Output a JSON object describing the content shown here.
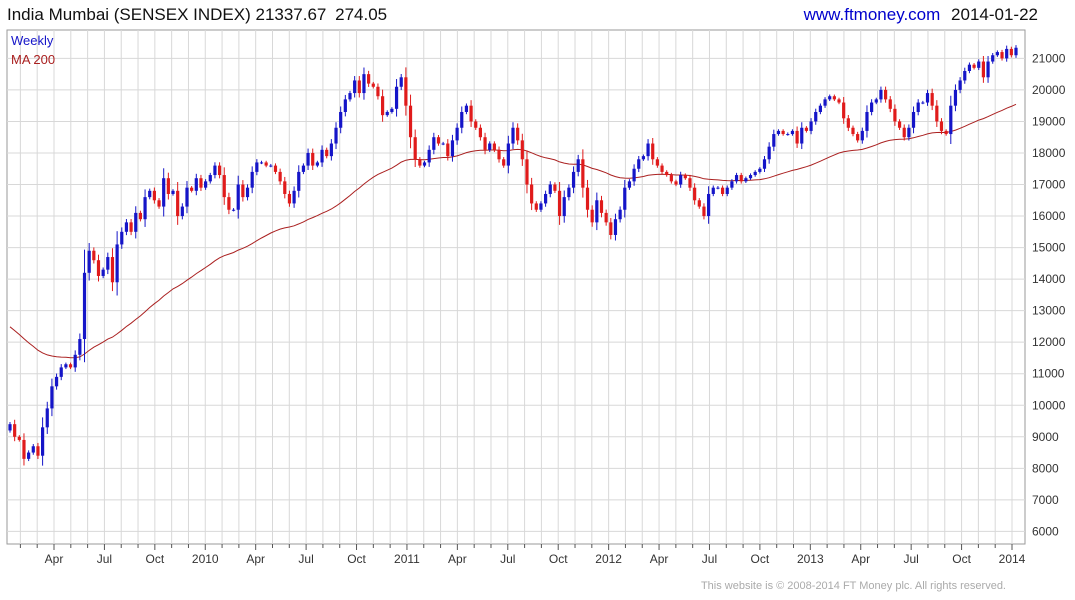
{
  "header": {
    "instrument": "India Mumbai (SENSEX INDEX)",
    "last": "21337.67",
    "change": "274.05",
    "site_url": "www.ftmoney.com",
    "date": "2014-01-22"
  },
  "footer": {
    "copyright": "This website is © 2008-2014 FT Money plc. All rights reserved."
  },
  "colors": {
    "up": "#1515c8",
    "down": "#e01b1b",
    "ma": "#aa2020",
    "grid": "#d8d8d8",
    "axis": "#333333",
    "url": "#0000cc"
  },
  "chart_data": {
    "type": "candlestick",
    "frequency": "Weekly",
    "legend": [
      {
        "label": "Weekly",
        "color": "#1515c8"
      },
      {
        "label": "MA 200",
        "color": "#aa2020"
      }
    ],
    "x_tick_labels": [
      "Apr",
      "Jul",
      "Oct",
      "2010",
      "Apr",
      "Jul",
      "Oct",
      "2011",
      "Apr",
      "Jul",
      "Oct",
      "2012",
      "Apr",
      "Jul",
      "Oct",
      "2013",
      "Apr",
      "Jul",
      "Oct",
      "2014"
    ],
    "y_ticks": [
      6000,
      7000,
      8000,
      9000,
      10000,
      11000,
      12000,
      13000,
      14000,
      15000,
      16000,
      17000,
      18000,
      19000,
      20000,
      21000
    ],
    "ylim": [
      5600,
      21900
    ],
    "grid": true,
    "close_series": [
      9400,
      9000,
      8900,
      8300,
      8500,
      8700,
      8400,
      9300,
      9900,
      10600,
      10900,
      11200,
      11300,
      11200,
      11600,
      12100,
      14200,
      14900,
      14600,
      14100,
      14300,
      14700,
      13900,
      15100,
      15500,
      15800,
      15500,
      16100,
      15900,
      16600,
      16800,
      16500,
      16300,
      17200,
      16700,
      16800,
      16000,
      16300,
      16900,
      16800,
      17200,
      16900,
      17100,
      17300,
      17600,
      17300,
      16600,
      16200,
      16200,
      17000,
      16600,
      16900,
      17400,
      17700,
      17700,
      17600,
      17600,
      17400,
      17100,
      16700,
      16400,
      16800,
      17400,
      17600,
      18000,
      17600,
      17700,
      18100,
      17900,
      18300,
      18800,
      19300,
      19700,
      19900,
      20300,
      19900,
      20500,
      20200,
      20100,
      19800,
      19200,
      19300,
      19400,
      20100,
      20400,
      19500,
      18500,
      17800,
      17600,
      17700,
      18100,
      18500,
      18300,
      18300,
      17900,
      18400,
      18800,
      19300,
      19500,
      19000,
      18800,
      18500,
      18100,
      18300,
      18100,
      17800,
      17600,
      18300,
      18800,
      18400,
      17800,
      17000,
      16400,
      16200,
      16400,
      16700,
      17000,
      16800,
      16000,
      16600,
      16900,
      17400,
      17800,
      16900,
      16200,
      15800,
      16500,
      16100,
      15800,
      15400,
      15900,
      16200,
      16900,
      17100,
      17500,
      17800,
      17900,
      18300,
      17800,
      17600,
      17400,
      17300,
      17100,
      17000,
      17300,
      17200,
      16900,
      16500,
      16300,
      16000,
      16700,
      16900,
      16900,
      16700,
      16900,
      17100,
      17300,
      17100,
      17200,
      17300,
      17400,
      17500,
      17800,
      18200,
      18600,
      18700,
      18600,
      18600,
      18700,
      18300,
      18800,
      18700,
      19000,
      19300,
      19500,
      19700,
      19800,
      19700,
      19600,
      19100,
      18800,
      18600,
      18400,
      18700,
      19300,
      19600,
      19700,
      20000,
      19700,
      19400,
      19000,
      18800,
      18500,
      18800,
      19300,
      19600,
      19600,
      19900,
      19500,
      19000,
      18700,
      18600,
      19500,
      20000,
      20300,
      20600,
      20800,
      20700,
      20900,
      20400,
      20900,
      21100,
      21200,
      21000,
      21300,
      21100,
      21337
    ]
  }
}
